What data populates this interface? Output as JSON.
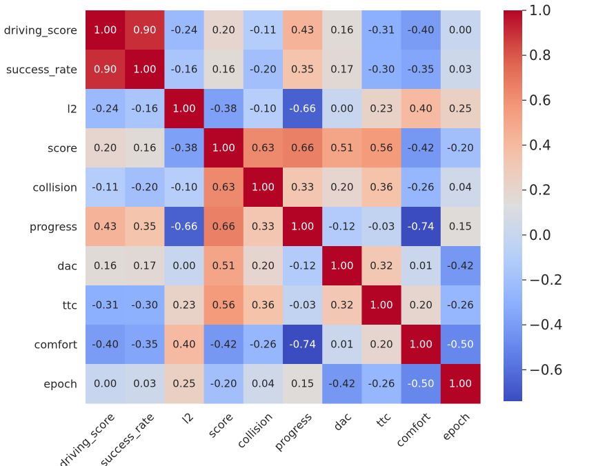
{
  "chart_data": {
    "type": "heatmap",
    "labels": [
      "driving_score",
      "success_rate",
      "l2",
      "score",
      "collision",
      "progress",
      "dac",
      "ttc",
      "comfort",
      "epoch"
    ],
    "values": [
      [
        1.0,
        0.9,
        -0.24,
        0.2,
        -0.11,
        0.43,
        0.16,
        -0.31,
        -0.4,
        0.0
      ],
      [
        0.9,
        1.0,
        -0.16,
        0.16,
        -0.2,
        0.35,
        0.17,
        -0.3,
        -0.35,
        0.03
      ],
      [
        -0.24,
        -0.16,
        1.0,
        -0.38,
        -0.1,
        -0.66,
        0.0,
        0.23,
        0.4,
        0.25
      ],
      [
        0.2,
        0.16,
        -0.38,
        1.0,
        0.63,
        0.66,
        0.51,
        0.56,
        -0.42,
        -0.2
      ],
      [
        -0.11,
        -0.2,
        -0.1,
        0.63,
        1.0,
        0.33,
        0.2,
        0.36,
        -0.26,
        0.04
      ],
      [
        0.43,
        0.35,
        -0.66,
        0.66,
        0.33,
        1.0,
        -0.12,
        -0.03,
        -0.74,
        0.15
      ],
      [
        0.16,
        0.17,
        0.0,
        0.51,
        0.2,
        -0.12,
        1.0,
        0.32,
        0.01,
        -0.42
      ],
      [
        -0.31,
        -0.3,
        0.23,
        0.56,
        0.36,
        -0.03,
        0.32,
        1.0,
        0.2,
        -0.26
      ],
      [
        -0.4,
        -0.35,
        0.4,
        -0.42,
        -0.26,
        -0.74,
        0.01,
        0.2,
        1.0,
        -0.5
      ],
      [
        0.0,
        0.03,
        0.25,
        -0.2,
        0.04,
        0.15,
        -0.42,
        -0.26,
        -0.5,
        1.0
      ]
    ],
    "colormap": "coolwarm",
    "vmin": -0.74,
    "vmax": 1.0,
    "colorbar_ticks": [
      1.0,
      0.8,
      0.6,
      0.4,
      0.2,
      0.0,
      -0.2,
      -0.4,
      -0.6
    ],
    "colorbar_tick_labels": [
      "1.0",
      "0.8",
      "0.6",
      "0.4",
      "0.2",
      "0.0",
      "−0.2",
      "−0.4",
      "−0.6"
    ],
    "annotations": "cell values with two decimals",
    "title": "",
    "xlabel": "",
    "ylabel": "",
    "grid": false
  }
}
